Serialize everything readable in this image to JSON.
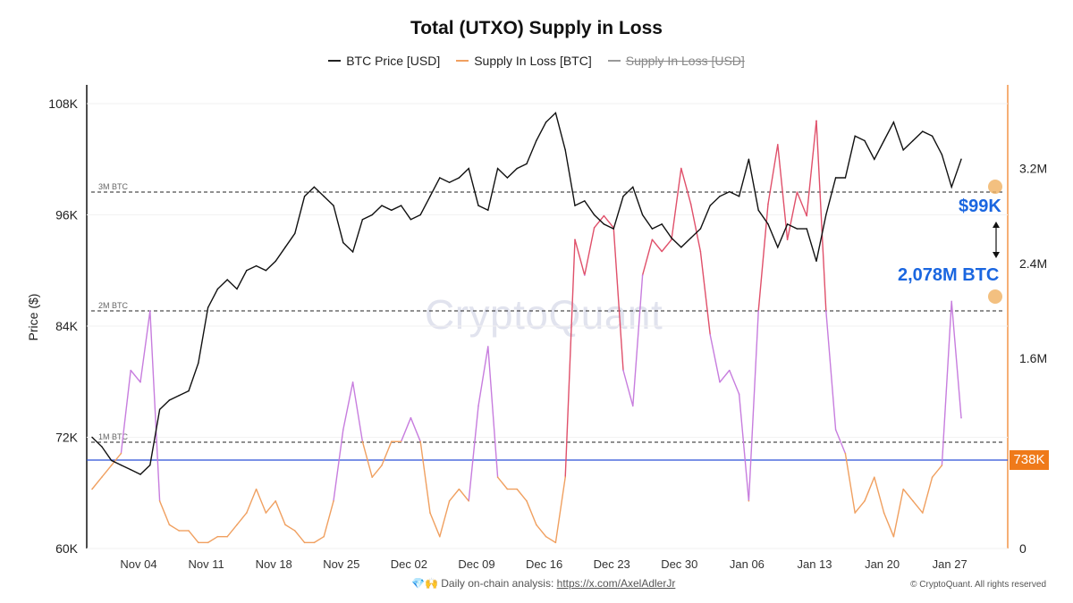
{
  "chart_data": {
    "type": "line",
    "title": "Total (UTXO) Supply in Loss",
    "ylabel": "Price ($)",
    "legend": [
      {
        "name": "BTC Price [USD]",
        "color": "#222222",
        "visible": true
      },
      {
        "name": "Supply In Loss [BTC]",
        "color": "#f0a060",
        "visible": true
      },
      {
        "name": "Supply In Loss [USD]",
        "color": "#999999",
        "visible": false
      }
    ],
    "legend_position": "top-center",
    "x_ticks": [
      "Nov 04",
      "Nov 11",
      "Nov 18",
      "Nov 25",
      "Dec 02",
      "Dec 09",
      "Dec 16",
      "Dec 23",
      "Dec 30",
      "Jan 06",
      "Jan 13",
      "Jan 20",
      "Jan 27"
    ],
    "y_left": {
      "ticks": [
        "60K",
        "72K",
        "84K",
        "96K",
        "108K"
      ],
      "range": [
        60000,
        112000
      ]
    },
    "y_right": {
      "ticks": [
        "0",
        "1.6M",
        "2.4M",
        "3.2M"
      ],
      "range": [
        0,
        3.9
      ]
    },
    "reference_lines": [
      {
        "label": "1M BTC",
        "value_m": 1
      },
      {
        "label": "2M BTC",
        "value_m": 2
      },
      {
        "label": "3M BTC",
        "value_m": 3
      }
    ],
    "current_line": {
      "label": "738K",
      "value_m": 0.738,
      "color": "#2a4fd6"
    },
    "series": [
      {
        "name": "BTC Price [USD]",
        "values": [
          72,
          71,
          69.5,
          69,
          68.5,
          68,
          69,
          75,
          76,
          76.5,
          77,
          80,
          86,
          88,
          89,
          88,
          90,
          90.5,
          90,
          91,
          92.5,
          94,
          98,
          99,
          98,
          97,
          93,
          92,
          95.5,
          96,
          97,
          96.5,
          97,
          95.5,
          96,
          98,
          100,
          99.5,
          100,
          101,
          97,
          96.5,
          101,
          100,
          101,
          101.5,
          104,
          106,
          107,
          103,
          97,
          97.5,
          96,
          95,
          94.5,
          98,
          99,
          96,
          94.5,
          95,
          93.5,
          92.5,
          93.5,
          94.5,
          97,
          98,
          98.5,
          98,
          102,
          96.5,
          95,
          92.5,
          95,
          94.5,
          94.5,
          91,
          96,
          100,
          100,
          104.5,
          104,
          102,
          104,
          106,
          103,
          104,
          105,
          104.5,
          102.5,
          99,
          102
        ]
      },
      {
        "name": "Supply In Loss [BTC]",
        "values": [
          0.5,
          0.6,
          0.7,
          0.8,
          1.5,
          1.4,
          2.0,
          0.4,
          0.2,
          0.15,
          0.15,
          0.05,
          0.05,
          0.1,
          0.1,
          0.2,
          0.3,
          0.5,
          0.3,
          0.4,
          0.2,
          0.15,
          0.05,
          0.05,
          0.1,
          0.4,
          1.0,
          1.4,
          0.9,
          0.6,
          0.7,
          0.9,
          0.9,
          1.1,
          0.9,
          0.3,
          0.1,
          0.4,
          0.5,
          0.4,
          1.2,
          1.7,
          0.6,
          0.5,
          0.5,
          0.4,
          0.2,
          0.1,
          0.05,
          0.6,
          2.6,
          2.3,
          2.7,
          2.8,
          2.7,
          1.5,
          1.2,
          2.3,
          2.6,
          2.5,
          2.6,
          3.2,
          2.9,
          2.5,
          1.8,
          1.4,
          1.5,
          1.3,
          0.4,
          2.0,
          2.9,
          3.4,
          2.6,
          3.0,
          2.8,
          3.6,
          2.0,
          1.0,
          0.8,
          0.3,
          0.4,
          0.6,
          0.3,
          0.1,
          0.5,
          0.4,
          0.3,
          0.6,
          0.7,
          2.08,
          1.1
        ]
      }
    ],
    "annotations": {
      "price": "$99K",
      "supply": "2,078M BTC"
    }
  },
  "watermark": "CryptoQuant",
  "footer": {
    "emoji": "💎🙌",
    "text": "Daily on-chain analysis: ",
    "link": "https://x.com/AxelAdlerJr",
    "copyright": "© CryptoQuant. All rights reserved"
  }
}
